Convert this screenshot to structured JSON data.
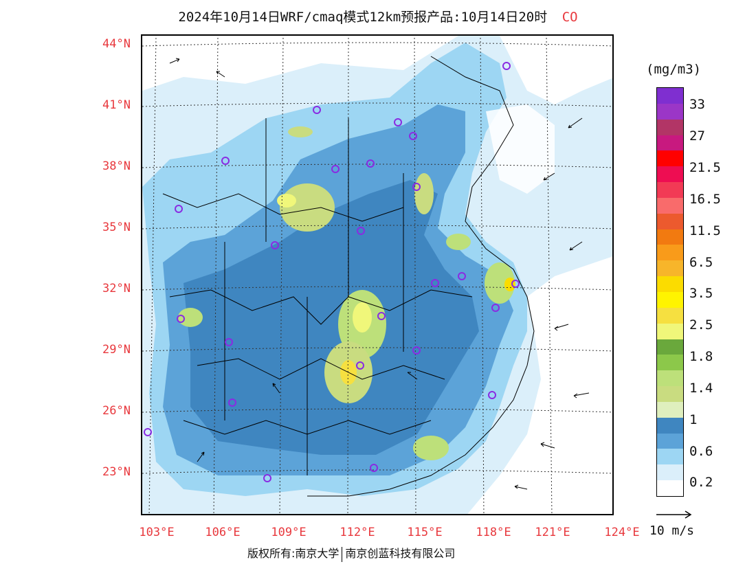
{
  "title": {
    "main": "2024年10月14日WRF/cmaq模式12km预报产品:10月14日20时",
    "pollutant": "CO"
  },
  "axes": {
    "latitude_labels": [
      "44°N",
      "41°N",
      "38°N",
      "35°N",
      "32°N",
      "29°N",
      "26°N",
      "23°N"
    ],
    "longitude_labels": [
      "103°E",
      "106°E",
      "109°E",
      "112°E",
      "115°E",
      "118°E",
      "121°E",
      "124°E"
    ]
  },
  "legend": {
    "unit": "(mg/m3)",
    "labels": [
      "33",
      "27",
      "21.5",
      "16.5",
      "11.5",
      "6.5",
      "3.5",
      "2.5",
      "1.8",
      "1.4",
      "1",
      "0.6",
      "0.2"
    ],
    "colors": [
      "#7f2fd0",
      "#9b36c7",
      "#b23566",
      "#c8197f",
      "#ff0000",
      "#ee0d52",
      "#f23a55",
      "#f96b6b",
      "#ec5a2e",
      "#f27a10",
      "#f99b1a",
      "#f7b52a",
      "#fbdc00",
      "#fff400",
      "#f6e040",
      "#f0f77a",
      "#6aa83c",
      "#8cc84a",
      "#bde07a",
      "#c9dc80",
      "#dfefbe",
      "#3f86c0",
      "#5ca3d8",
      "#9dd6f3",
      "#dbeffa",
      "#ffffff"
    ]
  },
  "wind_reference": {
    "label": "10 m/s"
  },
  "copyright": {
    "owner": "版权所有:南京大学",
    "partner": "南京创蓝科技有限公司"
  },
  "map": {
    "marker_color": "#8a2be2",
    "background_field_color": "#4a8ec9"
  }
}
